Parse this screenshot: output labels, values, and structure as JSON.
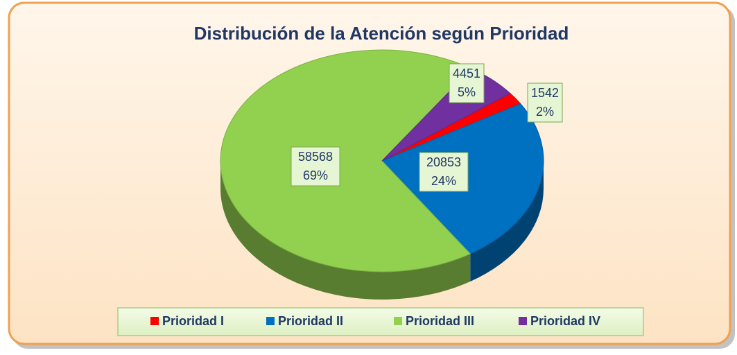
{
  "chart_data": {
    "type": "pie",
    "title": "Distribución de la Atención según Prioridad",
    "categories": [
      "Prioridad I",
      "Prioridad II",
      "Prioridad III",
      "Prioridad IV"
    ],
    "values": [
      1542,
      20853,
      58568,
      4451
    ],
    "percent_labels": [
      "2%",
      "24%",
      "69%",
      "5%"
    ],
    "colors": [
      "#ff0000",
      "#0070c0",
      "#92d050",
      "#7030a0"
    ],
    "legend": "bottom"
  }
}
